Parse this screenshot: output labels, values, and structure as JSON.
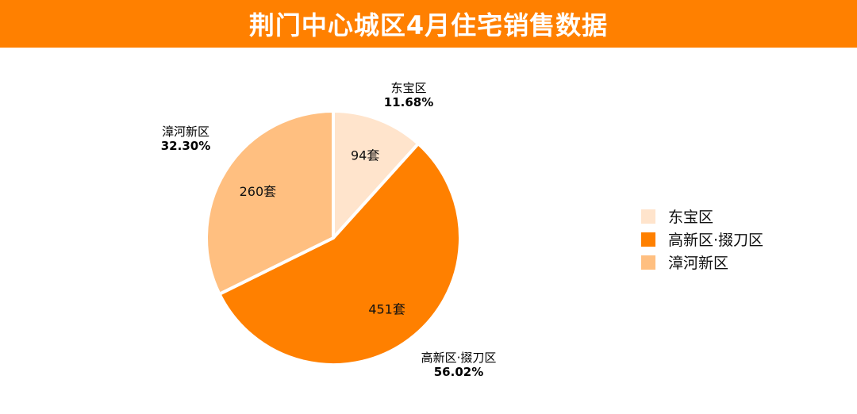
{
  "header": {
    "title": "荆门中心城区4月住宅销售数据"
  },
  "colors": {
    "header_bg": "#FF8000"
  },
  "chart_data": {
    "type": "pie",
    "title": "荆门中心城区4月住宅销售数据",
    "unit": "套",
    "slices": [
      {
        "name": "东宝区",
        "value": 94,
        "value_label": "94套",
        "percent_label": "11.68%",
        "color": "#FFE4CC"
      },
      {
        "name": "高新区·掇刀区",
        "value": 451,
        "value_label": "451套",
        "percent_label": "56.02%",
        "color": "#FF8000"
      },
      {
        "name": "漳河新区",
        "value": 260,
        "value_label": "260套",
        "percent_label": "32.30%",
        "color": "#FFBF80"
      }
    ],
    "legend_position": "right"
  }
}
